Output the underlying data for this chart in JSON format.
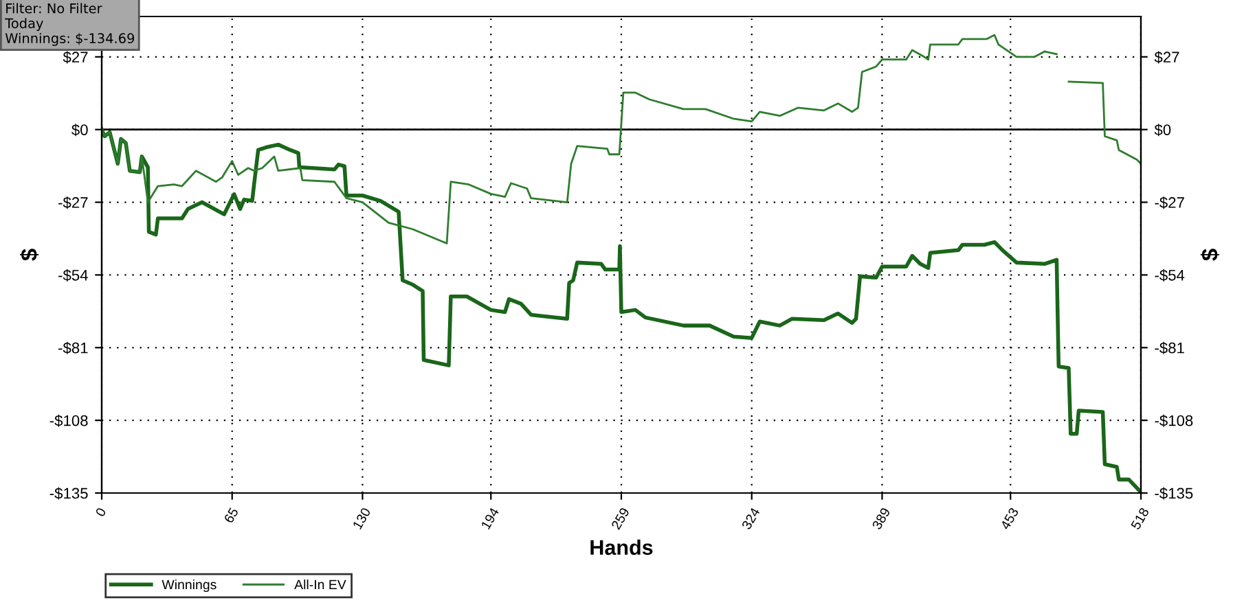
{
  "chart_data": {
    "type": "line",
    "xlabel": "Hands",
    "ylabel": "$",
    "y2label": "$",
    "annotations": [
      "Filter: No Filter\nToday\nWinnings: $-134.69"
    ],
    "xlim": [
      0,
      518
    ],
    "xticks": [
      0,
      65,
      130,
      194,
      259,
      324,
      389,
      453,
      518
    ],
    "ylim": [
      -135,
      42
    ],
    "yticks": [
      {
        "value": 27,
        "label": "$27"
      },
      {
        "value": 0,
        "label": "$0"
      },
      {
        "value": -27,
        "label": "-$27"
      },
      {
        "value": -54,
        "label": "-$54"
      },
      {
        "value": -81,
        "label": "-$81"
      },
      {
        "value": -108,
        "label": "-$108"
      },
      {
        "value": -135,
        "label": "-$135"
      }
    ],
    "y2lim": [
      -135,
      42
    ],
    "y2ticks": [
      {
        "value": 27,
        "label": "$27"
      },
      {
        "value": 0,
        "label": "$0"
      },
      {
        "value": -27,
        "label": "-$27"
      },
      {
        "value": -54,
        "label": "-$54"
      },
      {
        "value": -81,
        "label": "-$81"
      },
      {
        "value": -108,
        "label": "-$108"
      },
      {
        "value": -135,
        "label": "-$135"
      }
    ],
    "grid": true,
    "legend": "bottom left",
    "marker": "none",
    "ref_lines": [
      {
        "axis": "y",
        "value": 0,
        "color": "#000000",
        "line_style": "solid"
      }
    ],
    "series": [
      {
        "name": "Winnings",
        "color": "#1a661a",
        "x": [
          0,
          1.4,
          4,
          8,
          9.6,
          12,
          14,
          19,
          20,
          23,
          23.5,
          27,
          28,
          40,
          43,
          50,
          61,
          66,
          69,
          71,
          75,
          76,
          78,
          82,
          88,
          94,
          98,
          98.5,
          116,
          118,
          121,
          122,
          130,
          139,
          148,
          150,
          155,
          160,
          160.5,
          173,
          174,
          182,
          194,
          201,
          203,
          209,
          214,
          232,
          233,
          235,
          237,
          249,
          251,
          258,
          258.3,
          259,
          266,
          271,
          290,
          303,
          315,
          324,
          328,
          338,
          344,
          360,
          367,
          374,
          376,
          378,
          386,
          389,
          401,
          404,
          408,
          412,
          413,
          427,
          429,
          440,
          445,
          449,
          456,
          470,
          476,
          476.5,
          477,
          482,
          483,
          486,
          487,
          499,
          500,
          506,
          507,
          512,
          518
        ],
        "values": [
          0,
          -2.5,
          -1,
          -12.7,
          -3.5,
          -5,
          -15.3,
          -15.8,
          -10,
          -14,
          -38,
          -39,
          -33,
          -33,
          -29.5,
          -27,
          -31.5,
          -24,
          -29.5,
          -26,
          -26.5,
          -20,
          -7.6,
          -6.6,
          -5.6,
          -7.6,
          -8.7,
          -14,
          -14.8,
          -13,
          -13.6,
          -24.5,
          -24.5,
          -26.5,
          -30.5,
          -56,
          -57.6,
          -60,
          -85.6,
          -87.6,
          -62,
          -62,
          -67,
          -67.8,
          -63,
          -64.7,
          -68.8,
          -70.3,
          -57,
          -56,
          -49.4,
          -49.9,
          -52,
          -52,
          -43.3,
          -67.8,
          -67,
          -69.8,
          -72.8,
          -72.8,
          -76.9,
          -77.4,
          -71.3,
          -72.8,
          -70.3,
          -70.8,
          -68.3,
          -71.8,
          -70.3,
          -54.5,
          -55,
          -50.9,
          -50.9,
          -46.9,
          -49.9,
          -51.4,
          -45.8,
          -44.8,
          -42.8,
          -42.8,
          -41.8,
          -44.8,
          -49.4,
          -49.9,
          -48.4,
          -68.8,
          -88,
          -88.6,
          -113,
          -113,
          -104.4,
          -104.9,
          -124.3,
          -125.3,
          -130,
          -130,
          -134.7
        ]
      },
      {
        "name": "All-In EV",
        "color": "#2e7d2e",
        "x": [
          0,
          1.4,
          4,
          8,
          9.6,
          12,
          14,
          19,
          20,
          23,
          28,
          36,
          40,
          47,
          57,
          60,
          65,
          68,
          73,
          76,
          80,
          86,
          88,
          99,
          100,
          116,
          122,
          130,
          143,
          155,
          172,
          174,
          183,
          194,
          201,
          204,
          212,
          214,
          232,
          234,
          237,
          252,
          253,
          258,
          260,
          266,
          273,
          290,
          301,
          315,
          324,
          328,
          338,
          347,
          360,
          367,
          374,
          377,
          379,
          386,
          389,
          401,
          404,
          410,
          412,
          413,
          427,
          429,
          441,
          445,
          447,
          456,
          465,
          470,
          476,
          477,
          481,
          482,
          499,
          500,
          506,
          507,
          516,
          518
        ],
        "values": [
          0,
          -2.5,
          -1,
          -12.7,
          -3.5,
          -5,
          -15.3,
          -15.8,
          -10,
          -27,
          -21,
          -20.4,
          -21,
          -15.3,
          -19.4,
          -17.8,
          -11.7,
          -16.8,
          -14.3,
          -15.3,
          -14.3,
          -10,
          -15.3,
          -14.3,
          -18.8,
          -19.4,
          -25.5,
          -27,
          -34.6,
          -37,
          -42.3,
          -19.4,
          -20.4,
          -23.9,
          -25,
          -19.9,
          -21.9,
          -25.5,
          -27,
          -12.7,
          -6.1,
          -7.1,
          -9.2,
          -9.2,
          13.7,
          13.7,
          11.2,
          7.6,
          7.6,
          4,
          3,
          6.6,
          5.1,
          8.1,
          7.1,
          9.7,
          6.6,
          8.1,
          21.4,
          23.4,
          26,
          26,
          29.5,
          27,
          26,
          31.6,
          31.6,
          33.6,
          33.6,
          35.1,
          31.6,
          27,
          27,
          29,
          28,
          null,
          null,
          17.8,
          17.3,
          -2.5,
          -4,
          -7.6,
          -11.2,
          -12.7
        ]
      }
    ]
  }
}
